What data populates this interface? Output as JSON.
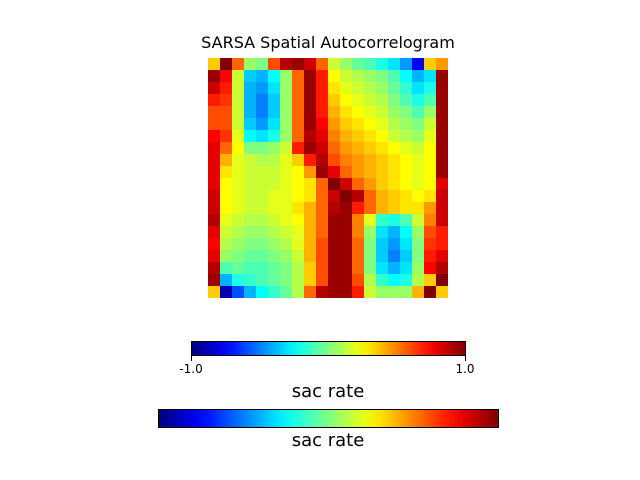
{
  "chart_data": {
    "type": "heatmap",
    "title": "SARSA Spatial Autocorrelogram",
    "colormap": "jet",
    "vmin": -1.0,
    "vmax": 1.0,
    "rows": 20,
    "cols": 20,
    "values": [
      [
        0.35,
        1.0,
        0.55,
        0.05,
        0.0,
        0.6,
        0.9,
        0.95,
        0.85,
        0.55,
        0.15,
        0.05,
        -0.05,
        -0.1,
        -0.2,
        -0.3,
        -0.45,
        -0.75,
        0.35,
        0.45
      ],
      [
        0.95,
        0.75,
        0.15,
        -0.35,
        -0.4,
        -0.25,
        0.05,
        0.55,
        0.95,
        0.7,
        0.25,
        0.15,
        0.1,
        0.05,
        0.0,
        -0.1,
        -0.25,
        -0.4,
        -0.3,
        0.95
      ],
      [
        0.85,
        0.7,
        0.15,
        -0.4,
        -0.45,
        -0.3,
        0.05,
        0.55,
        0.95,
        0.7,
        0.3,
        0.2,
        0.15,
        0.1,
        0.05,
        -0.05,
        -0.15,
        -0.3,
        -0.2,
        0.95
      ],
      [
        0.7,
        0.65,
        0.15,
        -0.4,
        -0.5,
        -0.35,
        0.05,
        0.55,
        0.95,
        0.7,
        0.35,
        0.25,
        0.2,
        0.15,
        0.1,
        0.0,
        -0.1,
        -0.2,
        -0.1,
        0.95
      ],
      [
        0.6,
        0.6,
        0.15,
        -0.4,
        -0.5,
        -0.35,
        0.05,
        0.55,
        0.95,
        0.7,
        0.4,
        0.3,
        0.25,
        0.2,
        0.15,
        0.05,
        0.0,
        -0.1,
        0.05,
        0.95
      ],
      [
        0.6,
        0.6,
        0.15,
        -0.35,
        -0.45,
        -0.3,
        0.05,
        0.55,
        0.95,
        0.75,
        0.45,
        0.35,
        0.3,
        0.25,
        0.2,
        0.1,
        0.05,
        0.0,
        0.15,
        0.95
      ],
      [
        0.75,
        0.65,
        0.2,
        -0.25,
        -0.3,
        -0.2,
        0.05,
        0.55,
        0.9,
        0.8,
        0.5,
        0.4,
        0.35,
        0.3,
        0.25,
        0.15,
        0.1,
        0.05,
        0.2,
        0.95
      ],
      [
        0.8,
        0.55,
        0.25,
        0.0,
        0.0,
        0.05,
        0.15,
        0.7,
        0.95,
        0.85,
        0.55,
        0.45,
        0.4,
        0.35,
        0.3,
        0.25,
        0.2,
        0.15,
        0.25,
        0.95
      ],
      [
        0.8,
        0.4,
        0.2,
        0.15,
        0.1,
        0.1,
        0.2,
        0.35,
        0.7,
        0.9,
        0.6,
        0.5,
        0.45,
        0.4,
        0.35,
        0.3,
        0.25,
        0.2,
        0.25,
        0.95
      ],
      [
        0.8,
        0.3,
        0.2,
        0.15,
        0.15,
        0.15,
        0.2,
        0.25,
        0.45,
        0.95,
        0.8,
        0.55,
        0.45,
        0.4,
        0.35,
        0.3,
        0.25,
        0.2,
        0.25,
        0.95
      ],
      [
        0.8,
        0.25,
        0.2,
        0.15,
        0.15,
        0.15,
        0.2,
        0.25,
        0.3,
        0.55,
        1.0,
        0.85,
        0.55,
        0.45,
        0.35,
        0.3,
        0.25,
        0.2,
        0.25,
        0.8
      ],
      [
        0.85,
        0.25,
        0.2,
        0.15,
        0.15,
        0.2,
        0.2,
        0.25,
        0.3,
        0.55,
        0.85,
        1.0,
        0.9,
        0.55,
        0.4,
        0.35,
        0.3,
        0.25,
        0.3,
        0.85
      ],
      [
        0.85,
        0.25,
        0.2,
        0.15,
        0.15,
        0.2,
        0.2,
        0.3,
        0.4,
        0.55,
        0.9,
        0.95,
        0.7,
        0.55,
        0.4,
        0.35,
        0.3,
        0.3,
        0.45,
        0.85
      ],
      [
        0.9,
        0.2,
        0.15,
        0.1,
        0.1,
        0.15,
        0.2,
        0.25,
        0.4,
        0.55,
        0.95,
        0.95,
        0.5,
        0.2,
        -0.15,
        -0.2,
        -0.1,
        0.15,
        0.5,
        0.85
      ],
      [
        0.8,
        0.15,
        0.1,
        0.05,
        0.05,
        0.1,
        0.15,
        0.2,
        0.4,
        0.55,
        0.95,
        0.95,
        0.5,
        0.05,
        -0.3,
        -0.4,
        -0.25,
        0.05,
        0.6,
        0.7
      ],
      [
        0.75,
        0.1,
        0.05,
        0.0,
        0.0,
        0.05,
        0.1,
        0.2,
        0.4,
        0.6,
        0.95,
        0.95,
        0.55,
        0.0,
        -0.35,
        -0.45,
        -0.3,
        0.0,
        0.65,
        0.7
      ],
      [
        0.8,
        0.05,
        0.0,
        -0.05,
        -0.05,
        0.0,
        0.05,
        0.15,
        0.4,
        0.6,
        0.95,
        0.95,
        0.55,
        0.0,
        -0.35,
        -0.5,
        -0.35,
        0.0,
        0.7,
        0.8
      ],
      [
        0.9,
        -0.1,
        -0.05,
        -0.1,
        -0.1,
        -0.05,
        0.0,
        0.1,
        0.35,
        0.6,
        0.95,
        0.95,
        0.55,
        0.0,
        -0.3,
        -0.4,
        -0.3,
        0.05,
        0.75,
        0.9
      ],
      [
        0.95,
        -0.4,
        -0.2,
        -0.15,
        -0.1,
        -0.05,
        0.0,
        0.1,
        0.35,
        0.6,
        0.95,
        0.95,
        0.6,
        0.1,
        -0.15,
        -0.25,
        -0.2,
        0.1,
        0.35,
        1.0
      ],
      [
        0.35,
        -0.9,
        -0.6,
        -0.4,
        -0.25,
        -0.15,
        -0.05,
        0.1,
        0.55,
        0.9,
        0.95,
        0.95,
        0.7,
        0.15,
        0.05,
        0.05,
        0.05,
        0.4,
        1.0,
        0.35
      ]
    ],
    "colorbars": [
      {
        "label": "sac rate",
        "tick_labels": [
          "-1.0",
          "1.0"
        ],
        "tick_values": [
          -1.0,
          1.0
        ]
      },
      {
        "label": "sac rate",
        "tick_labels": [],
        "tick_values": []
      }
    ]
  }
}
